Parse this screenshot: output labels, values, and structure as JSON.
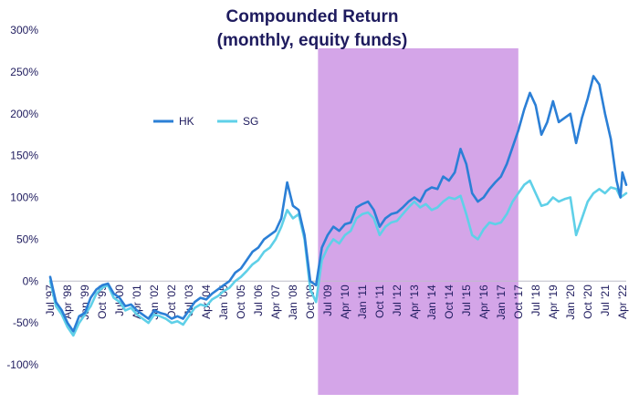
{
  "chart_data": {
    "type": "line",
    "title": "Compounded Return",
    "subtitle": "(monthly, equity funds)",
    "xlabel": "",
    "ylabel": "",
    "ylim": [
      -100,
      300
    ],
    "y_ticks": [
      "300%",
      "250%",
      "200%",
      "150%",
      "100%",
      "50%",
      "0%",
      "-50%",
      "-100%"
    ],
    "y_tick_values": [
      300,
      250,
      200,
      150,
      100,
      50,
      0,
      -50,
      -100
    ],
    "x_range": [
      "1997-07",
      "2022-06"
    ],
    "x_ticks": [
      "Jul '97",
      "Apr '98",
      "Jan '99",
      "Oct '99",
      "Jul '00",
      "Apr '01",
      "Jan '02",
      "Oct '02",
      "Jul '03",
      "Apr '04",
      "Jan '05",
      "Oct '05",
      "Jul '06",
      "Apr '07",
      "Jan '08",
      "Oct '08",
      "Jul '09",
      "Apr '10",
      "Jan '11",
      "Oct '11",
      "Jul '12",
      "Apr '13",
      "Jan '14",
      "Oct '14",
      "Jul '15",
      "Apr '16",
      "Jan '17",
      "Oct '17",
      "Jul '18",
      "Apr '19",
      "Jan '20",
      "Oct '20",
      "Jul '21",
      "Apr '22"
    ],
    "x_tick_dates": [
      "1997-07",
      "1998-04",
      "1999-01",
      "1999-10",
      "2000-07",
      "2001-04",
      "2002-01",
      "2002-10",
      "2003-07",
      "2004-04",
      "2005-01",
      "2005-10",
      "2006-07",
      "2007-04",
      "2008-01",
      "2008-10",
      "2009-07",
      "2010-04",
      "2011-01",
      "2011-10",
      "2012-07",
      "2013-04",
      "2014-01",
      "2014-10",
      "2015-07",
      "2016-04",
      "2017-01",
      "2017-10",
      "2018-07",
      "2019-04",
      "2020-01",
      "2020-10",
      "2021-07",
      "2022-04"
    ],
    "highlight": {
      "start": "2009-02",
      "end": "2017-10",
      "color": "#d4a5e8"
    },
    "legend": {
      "placement": "top-left"
    },
    "grid": false,
    "series": [
      {
        "name": "HK",
        "color": "#2b7fd6",
        "points": [
          [
            "1997-07",
            5
          ],
          [
            "1997-10",
            -25
          ],
          [
            "1998-01",
            -35
          ],
          [
            "1998-04",
            -50
          ],
          [
            "1998-07",
            -60
          ],
          [
            "1998-10",
            -42
          ],
          [
            "1999-01",
            -38
          ],
          [
            "1999-04",
            -20
          ],
          [
            "1999-07",
            -10
          ],
          [
            "1999-10",
            -5
          ],
          [
            "2000-01",
            -3
          ],
          [
            "2000-04",
            -15
          ],
          [
            "2000-07",
            -20
          ],
          [
            "2000-10",
            -30
          ],
          [
            "2001-01",
            -28
          ],
          [
            "2001-04",
            -35
          ],
          [
            "2001-07",
            -40
          ],
          [
            "2001-10",
            -45
          ],
          [
            "2002-01",
            -35
          ],
          [
            "2002-04",
            -38
          ],
          [
            "2002-07",
            -40
          ],
          [
            "2002-10",
            -45
          ],
          [
            "2003-01",
            -42
          ],
          [
            "2003-04",
            -45
          ],
          [
            "2003-07",
            -35
          ],
          [
            "2003-10",
            -25
          ],
          [
            "2004-01",
            -20
          ],
          [
            "2004-04",
            -22
          ],
          [
            "2004-07",
            -15
          ],
          [
            "2004-10",
            -10
          ],
          [
            "2005-01",
            -5
          ],
          [
            "2005-04",
            0
          ],
          [
            "2005-07",
            10
          ],
          [
            "2005-10",
            15
          ],
          [
            "2006-01",
            25
          ],
          [
            "2006-04",
            35
          ],
          [
            "2006-07",
            40
          ],
          [
            "2006-10",
            50
          ],
          [
            "2007-01",
            55
          ],
          [
            "2007-04",
            60
          ],
          [
            "2007-07",
            75
          ],
          [
            "2007-10",
            118
          ],
          [
            "2008-01",
            90
          ],
          [
            "2008-04",
            85
          ],
          [
            "2008-07",
            55
          ],
          [
            "2008-10",
            0
          ],
          [
            "2009-01",
            -5
          ],
          [
            "2009-04",
            40
          ],
          [
            "2009-07",
            55
          ],
          [
            "2009-10",
            65
          ],
          [
            "2010-01",
            60
          ],
          [
            "2010-04",
            68
          ],
          [
            "2010-07",
            70
          ],
          [
            "2010-10",
            88
          ],
          [
            "2011-01",
            92
          ],
          [
            "2011-04",
            95
          ],
          [
            "2011-07",
            85
          ],
          [
            "2011-10",
            65
          ],
          [
            "2012-01",
            75
          ],
          [
            "2012-04",
            80
          ],
          [
            "2012-07",
            82
          ],
          [
            "2012-10",
            88
          ],
          [
            "2013-01",
            95
          ],
          [
            "2013-04",
            100
          ],
          [
            "2013-07",
            95
          ],
          [
            "2013-10",
            108
          ],
          [
            "2014-01",
            112
          ],
          [
            "2014-04",
            110
          ],
          [
            "2014-07",
            125
          ],
          [
            "2014-10",
            120
          ],
          [
            "2015-01",
            130
          ],
          [
            "2015-04",
            158
          ],
          [
            "2015-07",
            140
          ],
          [
            "2015-10",
            105
          ],
          [
            "2016-01",
            95
          ],
          [
            "2016-04",
            100
          ],
          [
            "2016-07",
            110
          ],
          [
            "2016-10",
            118
          ],
          [
            "2017-01",
            125
          ],
          [
            "2017-04",
            140
          ],
          [
            "2017-07",
            160
          ],
          [
            "2017-10",
            180
          ],
          [
            "2018-01",
            205
          ],
          [
            "2018-04",
            225
          ],
          [
            "2018-07",
            210
          ],
          [
            "2018-10",
            175
          ],
          [
            "2019-01",
            190
          ],
          [
            "2019-04",
            215
          ],
          [
            "2019-07",
            190
          ],
          [
            "2019-10",
            195
          ],
          [
            "2020-01",
            200
          ],
          [
            "2020-04",
            165
          ],
          [
            "2020-07",
            195
          ],
          [
            "2020-10",
            218
          ],
          [
            "2021-01",
            245
          ],
          [
            "2021-04",
            235
          ],
          [
            "2021-07",
            200
          ],
          [
            "2021-10",
            170
          ],
          [
            "2022-01",
            120
          ],
          [
            "2022-03",
            100
          ],
          [
            "2022-04",
            130
          ],
          [
            "2022-06",
            115
          ]
        ]
      },
      {
        "name": "SG",
        "color": "#5fd0e8",
        "points": [
          [
            "1997-07",
            0
          ],
          [
            "1997-10",
            -30
          ],
          [
            "1998-01",
            -40
          ],
          [
            "1998-04",
            -55
          ],
          [
            "1998-07",
            -65
          ],
          [
            "1998-10",
            -50
          ],
          [
            "1999-01",
            -40
          ],
          [
            "1999-04",
            -30
          ],
          [
            "1999-07",
            -15
          ],
          [
            "1999-10",
            -8
          ],
          [
            "2000-01",
            -5
          ],
          [
            "2000-04",
            -20
          ],
          [
            "2000-07",
            -25
          ],
          [
            "2000-10",
            -35
          ],
          [
            "2001-01",
            -32
          ],
          [
            "2001-04",
            -40
          ],
          [
            "2001-07",
            -45
          ],
          [
            "2001-10",
            -50
          ],
          [
            "2002-01",
            -40
          ],
          [
            "2002-04",
            -42
          ],
          [
            "2002-07",
            -45
          ],
          [
            "2002-10",
            -50
          ],
          [
            "2003-01",
            -48
          ],
          [
            "2003-04",
            -52
          ],
          [
            "2003-07",
            -42
          ],
          [
            "2003-10",
            -32
          ],
          [
            "2004-01",
            -28
          ],
          [
            "2004-04",
            -30
          ],
          [
            "2004-07",
            -22
          ],
          [
            "2004-10",
            -18
          ],
          [
            "2005-01",
            -12
          ],
          [
            "2005-04",
            -8
          ],
          [
            "2005-07",
            0
          ],
          [
            "2005-10",
            5
          ],
          [
            "2006-01",
            12
          ],
          [
            "2006-04",
            20
          ],
          [
            "2006-07",
            25
          ],
          [
            "2006-10",
            35
          ],
          [
            "2007-01",
            40
          ],
          [
            "2007-04",
            50
          ],
          [
            "2007-07",
            65
          ],
          [
            "2007-10",
            85
          ],
          [
            "2008-01",
            75
          ],
          [
            "2008-04",
            80
          ],
          [
            "2008-07",
            50
          ],
          [
            "2008-10",
            -10
          ],
          [
            "2009-01",
            -25
          ],
          [
            "2009-04",
            25
          ],
          [
            "2009-07",
            40
          ],
          [
            "2009-10",
            50
          ],
          [
            "2010-01",
            45
          ],
          [
            "2010-04",
            55
          ],
          [
            "2010-07",
            60
          ],
          [
            "2010-10",
            75
          ],
          [
            "2011-01",
            80
          ],
          [
            "2011-04",
            82
          ],
          [
            "2011-07",
            75
          ],
          [
            "2011-10",
            55
          ],
          [
            "2012-01",
            65
          ],
          [
            "2012-04",
            70
          ],
          [
            "2012-07",
            72
          ],
          [
            "2012-10",
            80
          ],
          [
            "2013-01",
            88
          ],
          [
            "2013-04",
            95
          ],
          [
            "2013-07",
            88
          ],
          [
            "2013-10",
            92
          ],
          [
            "2014-01",
            85
          ],
          [
            "2014-04",
            88
          ],
          [
            "2014-07",
            95
          ],
          [
            "2014-10",
            100
          ],
          [
            "2015-01",
            98
          ],
          [
            "2015-04",
            102
          ],
          [
            "2015-07",
            80
          ],
          [
            "2015-10",
            55
          ],
          [
            "2016-01",
            50
          ],
          [
            "2016-04",
            62
          ],
          [
            "2016-07",
            70
          ],
          [
            "2016-10",
            68
          ],
          [
            "2017-01",
            70
          ],
          [
            "2017-04",
            80
          ],
          [
            "2017-07",
            95
          ],
          [
            "2017-10",
            105
          ],
          [
            "2018-01",
            115
          ],
          [
            "2018-04",
            120
          ],
          [
            "2018-07",
            105
          ],
          [
            "2018-10",
            90
          ],
          [
            "2019-01",
            92
          ],
          [
            "2019-04",
            100
          ],
          [
            "2019-07",
            95
          ],
          [
            "2019-10",
            98
          ],
          [
            "2020-01",
            100
          ],
          [
            "2020-04",
            55
          ],
          [
            "2020-07",
            75
          ],
          [
            "2020-10",
            95
          ],
          [
            "2021-01",
            105
          ],
          [
            "2021-04",
            110
          ],
          [
            "2021-07",
            105
          ],
          [
            "2021-10",
            112
          ],
          [
            "2022-01",
            110
          ],
          [
            "2022-03",
            100
          ],
          [
            "2022-06",
            105
          ]
        ]
      }
    ]
  }
}
